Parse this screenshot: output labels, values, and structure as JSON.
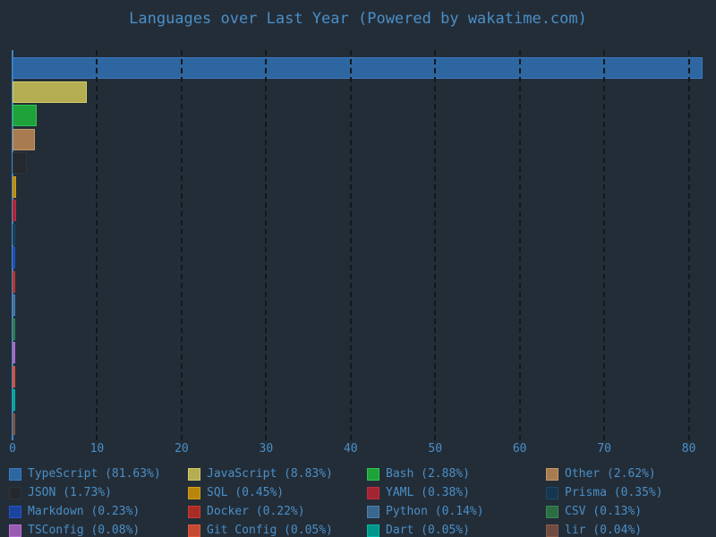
{
  "title": "Languages over Last Year (Powered by wakatime.com)",
  "colors": {
    "background": "#232d38",
    "text": "#4a8fc7",
    "gridline": "#14181d",
    "zero_line": "#3d85c4"
  },
  "chart_data": {
    "type": "bar",
    "orientation": "horizontal",
    "title": "Languages over Last Year (Powered by wakatime.com)",
    "xlabel": "",
    "ylabel": "",
    "xlim": [
      0,
      82.2
    ],
    "x_ticks": [
      0,
      10,
      20,
      30,
      40,
      50,
      60,
      70,
      80
    ],
    "grid": true,
    "legend_position": "bottom",
    "categories": [
      "TypeScript",
      "JavaScript",
      "Bash",
      "Other",
      "JSON",
      "SQL",
      "YAML",
      "Prisma",
      "Markdown",
      "Docker",
      "Python",
      "CSV",
      "TSConfig",
      "Git Config",
      "Dart",
      "lir"
    ],
    "values": [
      81.63,
      8.83,
      2.88,
      2.62,
      1.73,
      0.45,
      0.38,
      0.35,
      0.23,
      0.22,
      0.14,
      0.13,
      0.08,
      0.05,
      0.05,
      0.04
    ],
    "bar_fill_colors": [
      "#2d66a0",
      "#b4ad52",
      "#1fa23a",
      "#a87c50",
      "#25282c",
      "#b8860b",
      "#a32433",
      "#173650",
      "#1b43a0",
      "#a92d27",
      "#3a678e",
      "#2c6d45",
      "#9a5bb3",
      "#c54a33",
      "#00968a",
      "#6f4c41"
    ],
    "bar_edge_colors": [
      "#3a7abf",
      "#d3cc6b",
      "#31c452",
      "#c49a6a",
      "#303439",
      "#d49e14",
      "#c22c3f",
      "#1d4868",
      "#2356c6",
      "#c93b31",
      "#4a80b2",
      "#368a57",
      "#b773d4",
      "#e0583d",
      "#00b9ab",
      "#87594b"
    ]
  },
  "legend": {
    "items": [
      {
        "label": "TypeScript (81.63%)",
        "name": "TypeScript",
        "pct": "81.63%"
      },
      {
        "label": "JavaScript (8.83%)",
        "name": "JavaScript",
        "pct": "8.83%"
      },
      {
        "label": "Bash (2.88%)",
        "name": "Bash",
        "pct": "2.88%"
      },
      {
        "label": "Other (2.62%)",
        "name": "Other",
        "pct": "2.62%"
      },
      {
        "label": "JSON (1.73%)",
        "name": "JSON",
        "pct": "1.73%"
      },
      {
        "label": "SQL (0.45%)",
        "name": "SQL",
        "pct": "0.45%"
      },
      {
        "label": "YAML (0.38%)",
        "name": "YAML",
        "pct": "0.38%"
      },
      {
        "label": "Prisma (0.35%)",
        "name": "Prisma",
        "pct": "0.35%"
      },
      {
        "label": "Markdown (0.23%)",
        "name": "Markdown",
        "pct": "0.23%"
      },
      {
        "label": "Docker (0.22%)",
        "name": "Docker",
        "pct": "0.22%"
      },
      {
        "label": "Python (0.14%)",
        "name": "Python",
        "pct": "0.14%"
      },
      {
        "label": "CSV (0.13%)",
        "name": "CSV",
        "pct": "0.13%"
      },
      {
        "label": "TSConfig (0.08%)",
        "name": "TSConfig",
        "pct": "0.08%"
      },
      {
        "label": "Git Config (0.05%)",
        "name": "Git Config",
        "pct": "0.05%"
      },
      {
        "label": "Dart (0.05%)",
        "name": "Dart",
        "pct": "0.05%"
      },
      {
        "label": "lir (0.04%)",
        "name": "lir",
        "pct": "0.04%"
      }
    ]
  }
}
